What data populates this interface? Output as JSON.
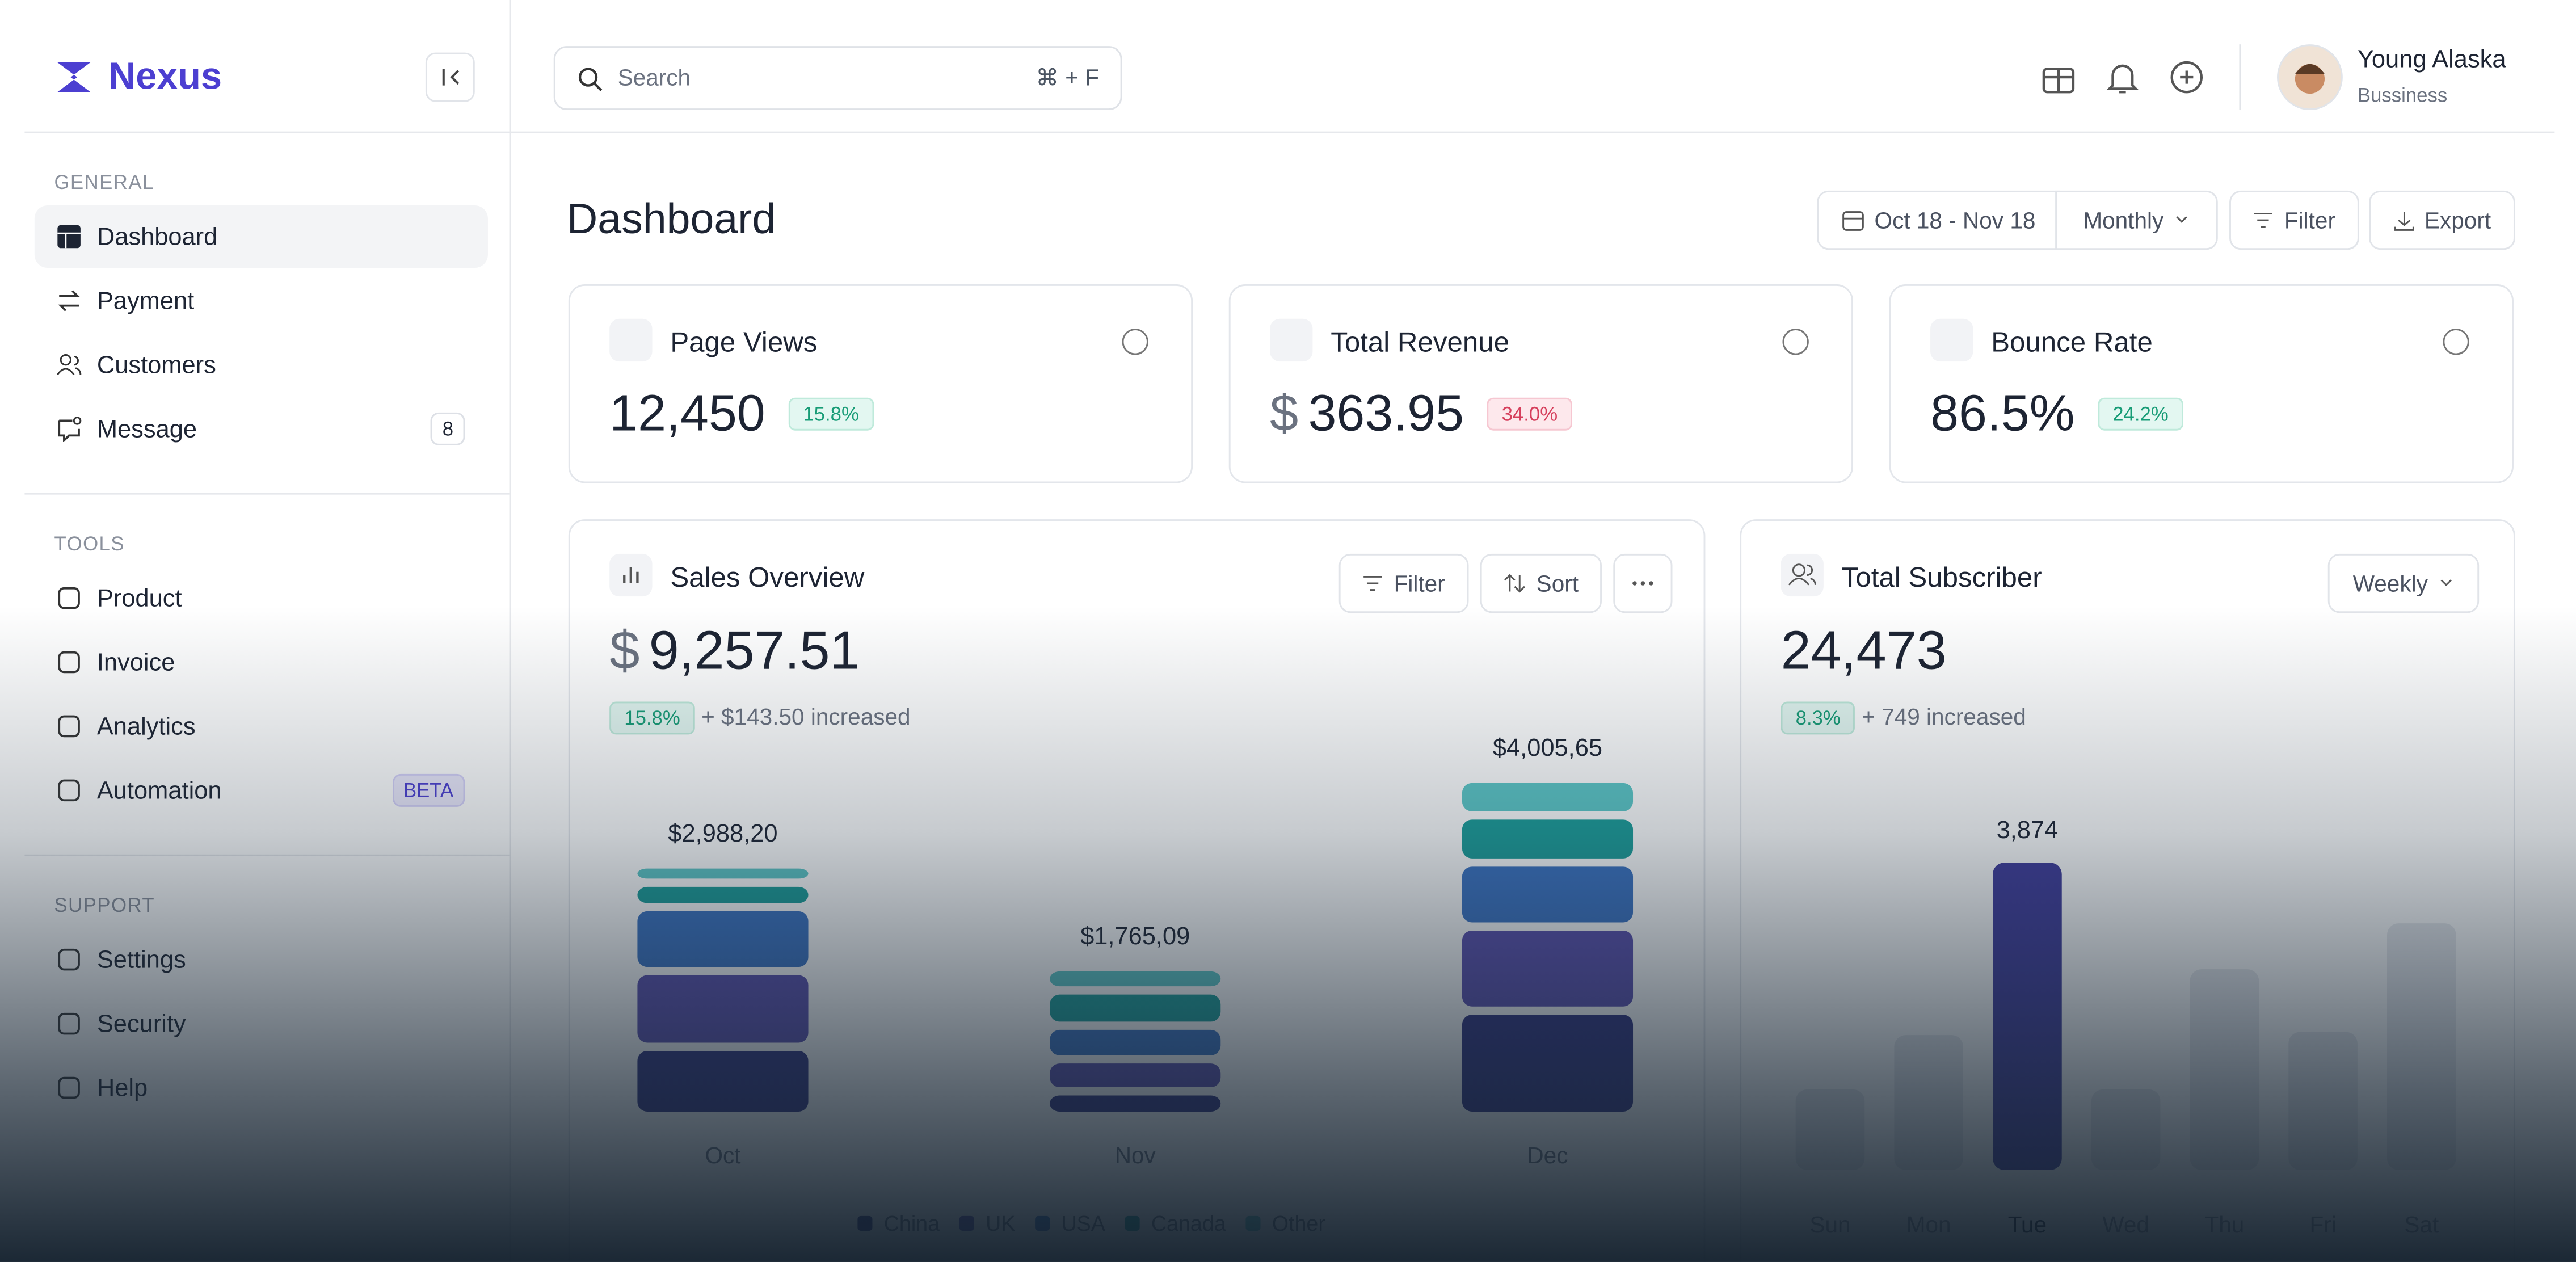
{
  "sidebar": {
    "brand": "Nexus",
    "sections": [
      {
        "title": "GENERAL",
        "items": [
          {
            "label": "Dashboard"
          },
          {
            "label": "Payment"
          },
          {
            "label": "Customers"
          },
          {
            "label": "Message",
            "badge": "8"
          }
        ]
      },
      {
        "title": "TOOLS",
        "items": [
          {
            "label": "Product"
          },
          {
            "label": "Invoice"
          },
          {
            "label": "Analytics"
          },
          {
            "label": "Automation",
            "badge": "BETA"
          }
        ]
      },
      {
        "title": "SUPPORT",
        "items": [
          {
            "label": "Settings"
          },
          {
            "label": "Security"
          },
          {
            "label": "Help"
          }
        ]
      }
    ]
  },
  "header": {
    "search": "Search",
    "shortcut": "⌘ + F",
    "user": {
      "name": "Young Alaska",
      "role": "Bussiness"
    }
  },
  "page": {
    "title": "Dashboard",
    "date_range": "Oct 18 - Nov 18",
    "period": "Monthly",
    "filter": "Filter",
    "export": "Export"
  },
  "stats": [
    {
      "title": "Page Views",
      "value": "12,450",
      "change": "15.8%"
    },
    {
      "title": "Total Revenue",
      "currency": "$",
      "value": "363.95",
      "change": "34.0%"
    },
    {
      "title": "Bounce Rate",
      "value": "86.5%",
      "change": "24.2%"
    }
  ],
  "sales": {
    "title": "Sales Overview",
    "filter": "Filter",
    "sort": "Sort",
    "currency": "$",
    "total": "9,257.51",
    "change": "15.8%",
    "note": "+ $143.50 increased",
    "chart_data": {
      "type": "stacked_bar",
      "categories": [
        "Oct",
        "Nov",
        "Dec"
      ],
      "total_labels": [
        "$2,988,20",
        "$1,765,09",
        "$4,005,65"
      ],
      "series": [
        {
          "name": "China",
          "color": "#2f3180",
          "values": [
            820,
            290,
            1250
          ]
        },
        {
          "name": "UK",
          "color": "#5a4fb0",
          "values": [
            900,
            380,
            1000
          ]
        },
        {
          "name": "USA",
          "color": "#3a73c4",
          "values": [
            760,
            400,
            760
          ]
        },
        {
          "name": "Canada",
          "color": "#1a9e9a",
          "values": [
            290,
            420,
            560
          ]
        },
        {
          "name": "Other",
          "color": "#5cc8c8",
          "values": [
            218,
            275,
            435
          ]
        }
      ]
    }
  },
  "subscriber": {
    "title": "Total Subscriber",
    "period": "Weekly",
    "total": "24,473",
    "change": "8.3%",
    "note": "+ 749 increased",
    "chart_data": {
      "type": "bar",
      "categories": [
        "Sun",
        "Mon",
        "Tue",
        "Wed",
        "Thu",
        "Fri",
        "Sat"
      ],
      "values": [
        1015,
        1700,
        3874,
        1015,
        2530,
        1740,
        3110
      ],
      "value_labels": [
        null,
        null,
        "3,874",
        null,
        null,
        null,
        null
      ],
      "color": "#e8eaee",
      "highlight_color": "#3f3b9c"
    }
  }
}
